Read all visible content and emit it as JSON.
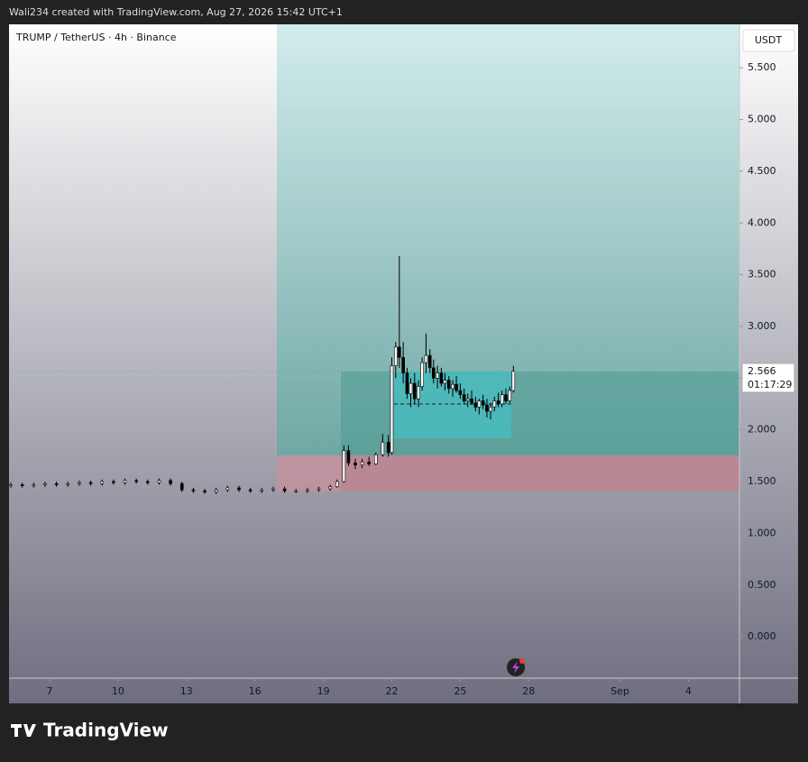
{
  "header": "Wali234 created with TradingView.com, Aug 27, 2026 15:42 UTC+1",
  "chart_data": {
    "type": "candlestick",
    "title": "TRUMP / TetherUS · 4h · Binance",
    "currency": "USDT",
    "up_color": "#ffffff",
    "down_color": "#000000",
    "x": [
      5.3,
      5.8,
      6.3,
      6.8,
      7.3,
      7.8,
      8.3,
      8.8,
      9.3,
      9.8,
      10.3,
      10.8,
      11.3,
      11.8,
      12.3,
      12.8,
      13.3,
      13.8,
      14.3,
      14.8,
      15.3,
      15.8,
      16.3,
      16.8,
      17.3,
      17.8,
      18.3,
      18.8,
      19.3,
      19.6,
      19.9,
      20.1,
      20.4,
      20.7,
      21.0,
      21.3,
      21.6,
      21.85,
      22.0,
      22.17,
      22.33,
      22.5,
      22.67,
      22.83,
      23.0,
      23.17,
      23.33,
      23.5,
      23.67,
      23.83,
      24.0,
      24.17,
      24.33,
      24.5,
      24.67,
      24.83,
      25.0,
      25.17,
      25.33,
      25.5,
      25.67,
      25.83,
      26.0,
      26.17,
      26.33,
      26.5,
      26.67,
      26.83,
      27.0,
      27.17,
      27.33
    ],
    "open": [
      1.46,
      1.47,
      1.46,
      1.47,
      1.48,
      1.47,
      1.48,
      1.49,
      1.48,
      1.5,
      1.49,
      1.51,
      1.5,
      1.49,
      1.51,
      1.48,
      1.42,
      1.41,
      1.4,
      1.42,
      1.44,
      1.42,
      1.41,
      1.42,
      1.43,
      1.41,
      1.41,
      1.42,
      1.43,
      1.45,
      1.5,
      1.8,
      1.68,
      1.66,
      1.69,
      1.67,
      1.76,
      1.88,
      1.78,
      2.62,
      2.8,
      2.7,
      2.55,
      2.35,
      2.45,
      2.3,
      2.42,
      2.65,
      2.72,
      2.6,
      2.5,
      2.55,
      2.45,
      2.48,
      2.4,
      2.44,
      2.38,
      2.34,
      2.28,
      2.3,
      2.26,
      2.22,
      2.28,
      2.24,
      2.18,
      2.22,
      2.28,
      2.25,
      2.34,
      2.28,
      2.38
    ],
    "high": [
      1.49,
      1.49,
      1.49,
      1.5,
      1.5,
      1.5,
      1.51,
      1.51,
      1.52,
      1.52,
      1.53,
      1.53,
      1.52,
      1.53,
      1.53,
      1.5,
      1.44,
      1.43,
      1.44,
      1.46,
      1.46,
      1.44,
      1.44,
      1.45,
      1.45,
      1.43,
      1.44,
      1.45,
      1.47,
      1.52,
      1.85,
      1.85,
      1.72,
      1.72,
      1.74,
      1.78,
      1.96,
      1.95,
      2.7,
      2.85,
      3.68,
      2.85,
      2.6,
      2.5,
      2.55,
      2.48,
      2.7,
      2.93,
      2.78,
      2.68,
      2.62,
      2.6,
      2.55,
      2.52,
      2.48,
      2.52,
      2.45,
      2.4,
      2.35,
      2.38,
      2.32,
      2.3,
      2.34,
      2.3,
      2.26,
      2.32,
      2.36,
      2.38,
      2.4,
      2.42,
      2.62
    ],
    "low": [
      1.44,
      1.44,
      1.44,
      1.45,
      1.45,
      1.45,
      1.46,
      1.46,
      1.46,
      1.47,
      1.47,
      1.48,
      1.47,
      1.47,
      1.46,
      1.4,
      1.39,
      1.38,
      1.38,
      1.4,
      1.4,
      1.39,
      1.39,
      1.4,
      1.39,
      1.39,
      1.39,
      1.4,
      1.41,
      1.44,
      1.49,
      1.65,
      1.62,
      1.63,
      1.65,
      1.66,
      1.74,
      1.74,
      1.76,
      2.5,
      2.6,
      2.45,
      2.3,
      2.22,
      2.25,
      2.22,
      2.38,
      2.55,
      2.55,
      2.45,
      2.4,
      2.42,
      2.38,
      2.35,
      2.32,
      2.36,
      2.3,
      2.25,
      2.22,
      2.24,
      2.18,
      2.15,
      2.2,
      2.12,
      2.1,
      2.18,
      2.22,
      2.22,
      2.25,
      2.26,
      2.36
    ],
    "close": [
      1.47,
      1.46,
      1.47,
      1.48,
      1.47,
      1.48,
      1.49,
      1.48,
      1.5,
      1.49,
      1.51,
      1.5,
      1.49,
      1.51,
      1.48,
      1.42,
      1.41,
      1.4,
      1.42,
      1.44,
      1.42,
      1.41,
      1.42,
      1.43,
      1.41,
      1.41,
      1.42,
      1.43,
      1.45,
      1.5,
      1.8,
      1.68,
      1.66,
      1.69,
      1.67,
      1.76,
      1.88,
      1.78,
      2.62,
      2.8,
      2.7,
      2.55,
      2.35,
      2.45,
      2.3,
      2.42,
      2.65,
      2.72,
      2.6,
      2.5,
      2.55,
      2.45,
      2.48,
      2.4,
      2.44,
      2.38,
      2.34,
      2.28,
      2.3,
      2.26,
      2.22,
      2.28,
      2.24,
      2.18,
      2.22,
      2.28,
      2.25,
      2.34,
      2.28,
      2.38,
      2.566
    ],
    "xlim": [
      5.22,
      37.24
    ],
    "xticks": [
      7,
      10,
      13,
      16,
      19,
      22,
      25,
      28,
      {
        "value": 32,
        "label": "Sep"
      },
      {
        "value": 35,
        "label": "4"
      }
    ],
    "ylim": [
      -0.4,
      5.92
    ],
    "yticks": [
      {
        "value": 0,
        "label": "0.000"
      },
      {
        "value": 0.5,
        "label": "0.500"
      },
      {
        "value": 1,
        "label": "1.000"
      },
      {
        "value": 1.5,
        "label": "1.500"
      },
      {
        "value": 2,
        "label": "2.000"
      },
      {
        "value": 2.5,
        "label": "2.500"
      },
      {
        "value": 3,
        "label": "3.000"
      },
      {
        "value": 3.5,
        "label": "3.500"
      },
      {
        "value": 4,
        "label": "4.000"
      },
      {
        "value": 4.5,
        "label": "4.500"
      },
      {
        "value": 5,
        "label": "5.000"
      },
      {
        "value": 5.5,
        "label": "5.500"
      }
    ],
    "last_price": {
      "value": 2.566,
      "label": "2.566"
    },
    "countdown": "01:17:29"
  },
  "footer": {
    "logo": "TradingView"
  }
}
